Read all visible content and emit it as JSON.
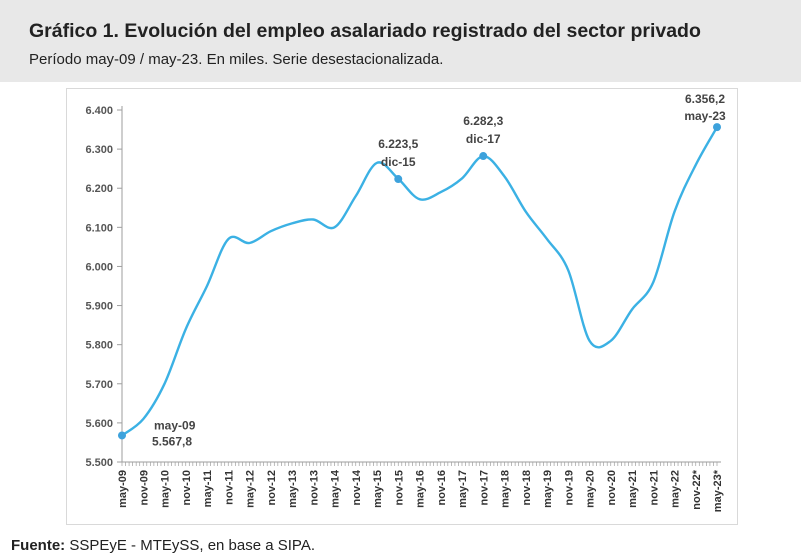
{
  "header": {
    "title": "Gráfico 1. Evolución del empleo asalariado registrado del sector privado",
    "subtitle": "Período may-09 / may-23. En miles. Serie desestacionalizada."
  },
  "footer": {
    "source_label": "Fuente:",
    "source_text": " SSPEyE - MTEySS, en base a SIPA."
  },
  "colors": {
    "line": "#3bb1e4",
    "marker": "#3da2dc",
    "axis": "#9e9e9e"
  },
  "chart_data": {
    "type": "line",
    "title": "Gráfico 1. Evolución del empleo asalariado registrado del sector privado",
    "subtitle": "Período may-09 / may-23. En miles. Serie desestacionalizada.",
    "xlabel": "",
    "ylabel": "",
    "ylim": [
      5500,
      6400
    ],
    "yticks": [
      "5.500",
      "5.600",
      "5.700",
      "5.800",
      "5.900",
      "6.000",
      "6.100",
      "6.200",
      "6.300",
      "6.400"
    ],
    "yticks_values": [
      5500,
      5600,
      5700,
      5800,
      5900,
      6000,
      6100,
      6200,
      6300,
      6400
    ],
    "x_tick_labels": [
      "may-09",
      "nov-09",
      "may-10",
      "nov-10",
      "may-11",
      "nov-11",
      "may-12",
      "nov-12",
      "may-13",
      "nov-13",
      "may-14",
      "nov-14",
      "may-15",
      "nov-15",
      "may-16",
      "nov-16",
      "may-17",
      "nov-17",
      "may-18",
      "nov-18",
      "may-19",
      "nov-19",
      "may-20",
      "nov-20",
      "may-21",
      "nov-21",
      "may-22",
      "nov-22*",
      "may-23*"
    ],
    "grid": false,
    "legend": "none",
    "series": [
      {
        "points": [
          [
            "may-09",
            5568
          ],
          [
            "nov-09",
            5610
          ],
          [
            "may-10",
            5700
          ],
          [
            "nov-10",
            5840
          ],
          [
            "may-11",
            5950
          ],
          [
            "nov-11",
            6070
          ],
          [
            "may-12",
            6060
          ],
          [
            "nov-12",
            6090
          ],
          [
            "may-13",
            6110
          ],
          [
            "nov-13",
            6120
          ],
          [
            "may-14",
            6100
          ],
          [
            "nov-14",
            6180
          ],
          [
            "may-15",
            6265
          ],
          [
            "nov-15",
            6224
          ],
          [
            "may-16",
            6172
          ],
          [
            "nov-16",
            6190
          ],
          [
            "may-17",
            6225
          ],
          [
            "nov-17",
            6282
          ],
          [
            "may-18",
            6230
          ],
          [
            "nov-18",
            6140
          ],
          [
            "may-19",
            6070
          ],
          [
            "nov-19",
            5990
          ],
          [
            "may-20",
            5810
          ],
          [
            "nov-20",
            5810
          ],
          [
            "may-21",
            5890
          ],
          [
            "nov-21",
            5960
          ],
          [
            "may-22",
            6140
          ],
          [
            "nov-22*",
            6260
          ],
          [
            "may-23*",
            6356
          ]
        ]
      }
    ],
    "annotations": [
      {
        "x": "may-09",
        "y": 5567.8,
        "label_date": "may-09",
        "label_value": "5.567,8",
        "position": "right-below"
      },
      {
        "x": "nov-15",
        "y": 6223.5,
        "label_date": "dic-15",
        "label_value": "6.223,5",
        "position": "above"
      },
      {
        "x": "nov-17",
        "y": 6282.3,
        "label_date": "dic-17",
        "label_value": "6.282,3",
        "position": "above"
      },
      {
        "x": "may-23*",
        "y": 6356.2,
        "label_date": "may-23",
        "label_value": "6.356,2",
        "position": "above-left"
      }
    ]
  }
}
